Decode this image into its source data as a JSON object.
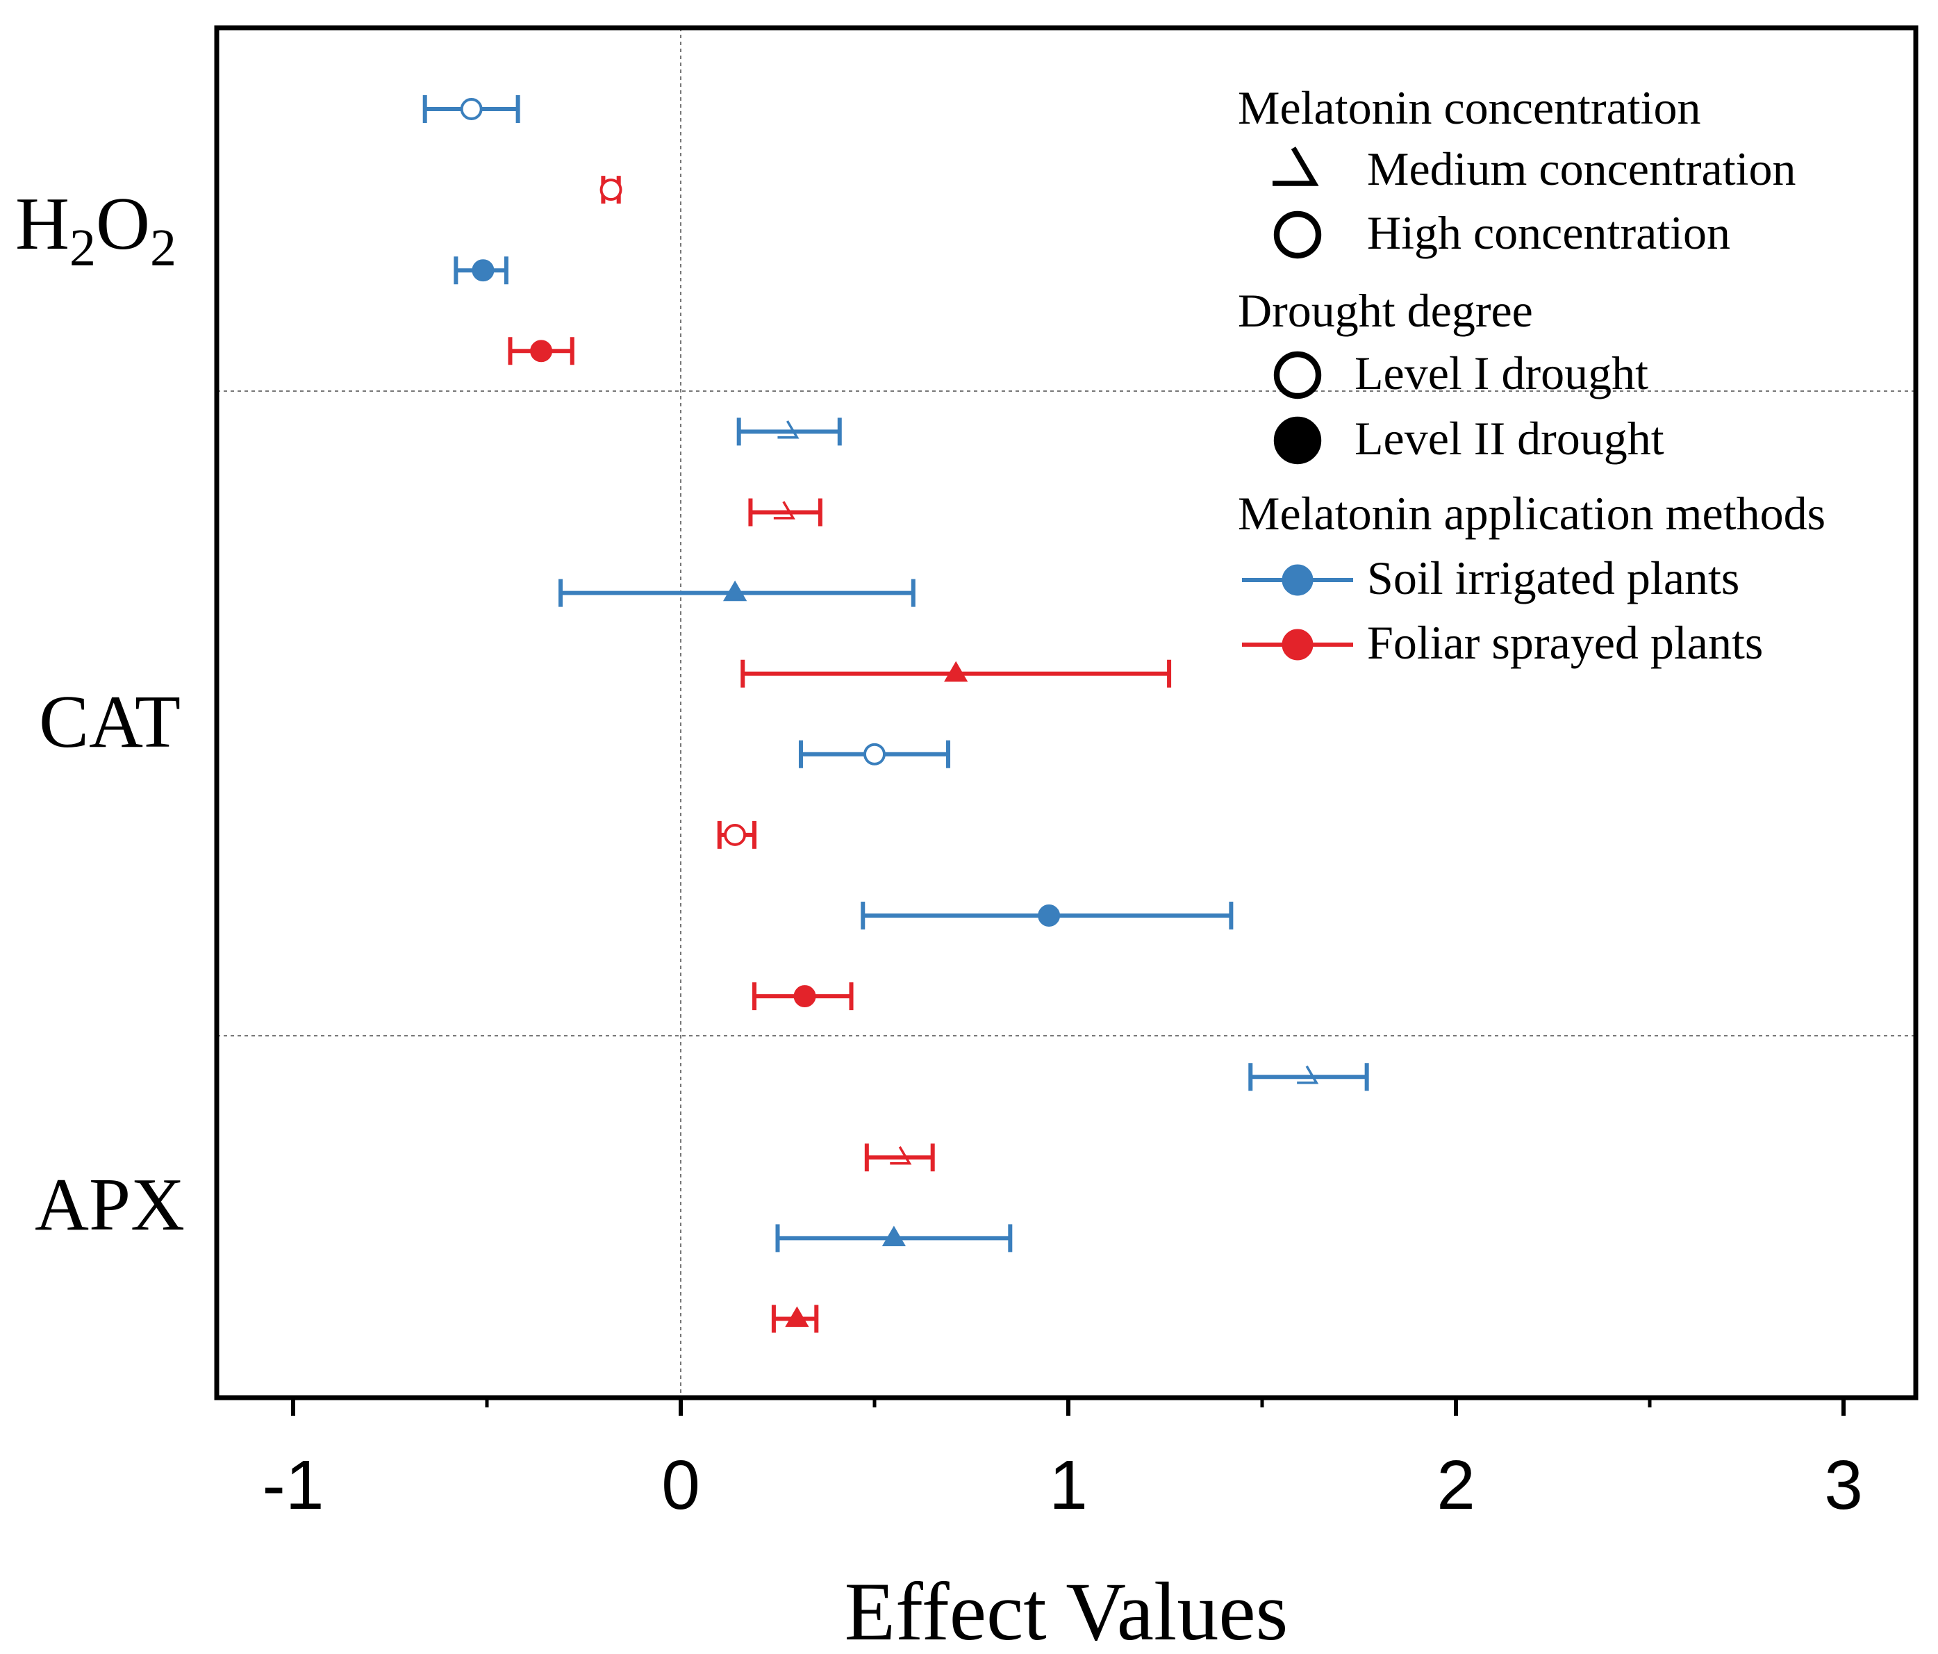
{
  "chart_data": {
    "type": "scatter",
    "subtype": "forest-plot",
    "xlabel": "Effect Values",
    "xlim": [
      -1.2,
      3.2
    ],
    "xticks": [
      "-1",
      "0",
      "1",
      "2",
      "3"
    ],
    "xtick_values": [
      -1,
      0,
      1,
      2,
      3
    ],
    "minor_xtick_values": [
      -0.5,
      0.5,
      1.5,
      2.5
    ],
    "zero_reference_line": 0,
    "grid": false,
    "groups": [
      {
        "label": "H",
        "sub1": "2",
        "mid": "O",
        "sub2": "2",
        "name": "H2O2"
      },
      {
        "label": "CAT",
        "name": "CAT"
      },
      {
        "label": "APX",
        "name": "APX"
      }
    ],
    "series_colors": {
      "Soil irrigated plants": "#3a7fbd",
      "Foliar sprayed plants": "#e3232a"
    },
    "rows": [
      {
        "group": "H2O2",
        "method": "Soil irrigated plants",
        "marker": "open-circle",
        "value": -0.54,
        "ci_low": -0.66,
        "ci_high": -0.42
      },
      {
        "group": "H2O2",
        "method": "Foliar sprayed plants",
        "marker": "open-circle",
        "value": -0.18,
        "ci_low": -0.2,
        "ci_high": -0.16
      },
      {
        "group": "H2O2",
        "method": "Soil irrigated plants",
        "marker": "filled-circle",
        "value": -0.51,
        "ci_low": -0.58,
        "ci_high": -0.45
      },
      {
        "group": "H2O2",
        "method": "Foliar sprayed plants",
        "marker": "filled-circle",
        "value": -0.36,
        "ci_low": -0.44,
        "ci_high": -0.28
      },
      {
        "group": "CAT",
        "method": "Soil irrigated plants",
        "marker": "open-triangle",
        "value": 0.28,
        "ci_low": 0.15,
        "ci_high": 0.41
      },
      {
        "group": "CAT",
        "method": "Foliar sprayed plants",
        "marker": "open-triangle",
        "value": 0.27,
        "ci_low": 0.18,
        "ci_high": 0.36
      },
      {
        "group": "CAT",
        "method": "Soil irrigated plants",
        "marker": "filled-triangle",
        "value": 0.14,
        "ci_low": -0.31,
        "ci_high": 0.6
      },
      {
        "group": "CAT",
        "method": "Foliar sprayed plants",
        "marker": "filled-triangle",
        "value": 0.71,
        "ci_low": 0.16,
        "ci_high": 1.26
      },
      {
        "group": "CAT",
        "method": "Soil irrigated plants",
        "marker": "open-circle",
        "value": 0.5,
        "ci_low": 0.31,
        "ci_high": 0.69
      },
      {
        "group": "CAT",
        "method": "Foliar sprayed plants",
        "marker": "open-circle",
        "value": 0.14,
        "ci_low": 0.1,
        "ci_high": 0.19
      },
      {
        "group": "CAT",
        "method": "Soil irrigated plants",
        "marker": "filled-circle",
        "value": 0.95,
        "ci_low": 0.47,
        "ci_high": 1.42
      },
      {
        "group": "CAT",
        "method": "Foliar sprayed plants",
        "marker": "filled-circle",
        "value": 0.32,
        "ci_low": 0.19,
        "ci_high": 0.44
      },
      {
        "group": "APX",
        "method": "Soil irrigated plants",
        "marker": "open-triangle",
        "value": 1.62,
        "ci_low": 1.47,
        "ci_high": 1.77
      },
      {
        "group": "APX",
        "method": "Foliar sprayed plants",
        "marker": "open-triangle",
        "value": 0.57,
        "ci_low": 0.48,
        "ci_high": 0.65
      },
      {
        "group": "APX",
        "method": "Soil irrigated plants",
        "marker": "filled-triangle",
        "value": 0.55,
        "ci_low": 0.25,
        "ci_high": 0.85
      },
      {
        "group": "APX",
        "method": "Foliar sprayed plants",
        "marker": "filled-triangle",
        "value": 0.3,
        "ci_low": 0.24,
        "ci_high": 0.35
      }
    ],
    "legend": {
      "position": "top-right",
      "sections": [
        {
          "title": "Melatonin concentration",
          "items": [
            {
              "label": "Medium concentration",
              "marker": "open-triangle"
            },
            {
              "label": "High concentration",
              "marker": "open-circle"
            }
          ]
        },
        {
          "title": "Drought degree",
          "items": [
            {
              "label": "Level I drought",
              "marker": "open-circle"
            },
            {
              "label": "Level II drought",
              "marker": "filled-circle"
            }
          ]
        },
        {
          "title": "Melatonin application methods",
          "items": [
            {
              "label": "Soil irrigated plants",
              "marker": "line-circle",
              "color": "#3a7fbd"
            },
            {
              "label": "Foliar sprayed plants",
              "marker": "line-circle",
              "color": "#e3232a"
            }
          ]
        }
      ]
    }
  }
}
